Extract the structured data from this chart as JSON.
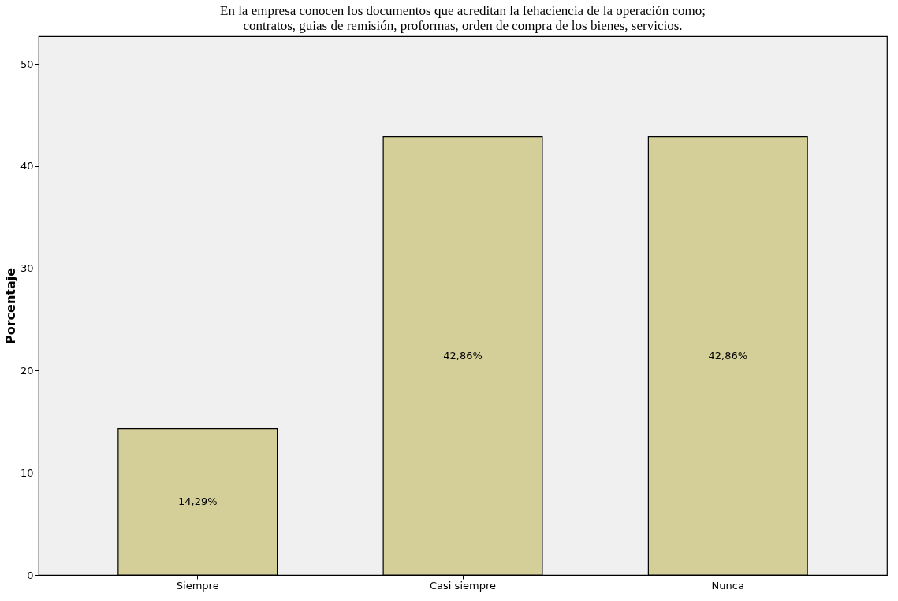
{
  "chart_data": {
    "type": "bar",
    "title": "En la empresa conocen los documentos que acreditan la fehaciencia de la operación como; contratos, guias de remisión, proformas, orden de compra de los bienes, servicios.",
    "ylabel": "Porcentaje",
    "categories": [
      "Siempre",
      "Casi siempre",
      "Nunca"
    ],
    "values": [
      14.29,
      42.86,
      42.86
    ],
    "value_labels": [
      "14,29%",
      "42,86%",
      "42,86%"
    ],
    "color": "#d4cf98",
    "ylim": [
      0,
      52.7
    ],
    "yticks": [
      0,
      10,
      20,
      30,
      40,
      50
    ],
    "grid": false
  }
}
